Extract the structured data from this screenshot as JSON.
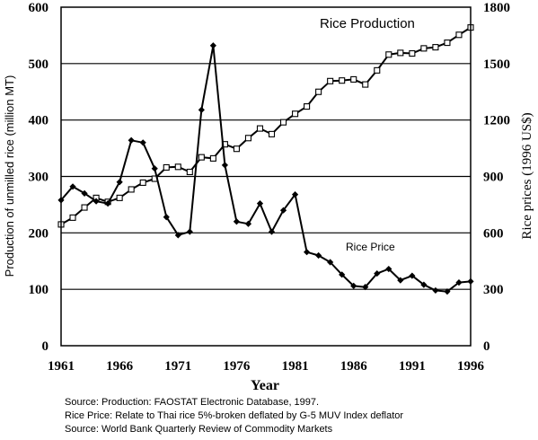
{
  "chart_data": {
    "type": "line",
    "xlabel": "Year",
    "ylabel_left": "Production of unmilled rice (million MT)",
    "ylabel_right": "Rice prices (1996 US$)",
    "xlim": [
      1961,
      1996
    ],
    "ylim_left": [
      0,
      600
    ],
    "ylim_right": [
      0,
      1800
    ],
    "x_ticks": [
      "1961",
      "1966",
      "1971",
      "1976",
      "1981",
      "1986",
      "1991",
      "1996"
    ],
    "y_ticks_left": [
      "0",
      "100",
      "200",
      "300",
      "400",
      "500",
      "600"
    ],
    "y_ticks_right": [
      "0",
      "300",
      "600",
      "900",
      "1200",
      "1500",
      "1800"
    ],
    "grid": "horizontal",
    "series": [
      {
        "name": "Rice Production",
        "axis": "left",
        "marker": "open-square",
        "x": [
          1961,
          1962,
          1963,
          1964,
          1965,
          1966,
          1967,
          1968,
          1969,
          1970,
          1971,
          1972,
          1973,
          1974,
          1975,
          1976,
          1977,
          1978,
          1979,
          1980,
          1981,
          1982,
          1983,
          1984,
          1985,
          1986,
          1987,
          1988,
          1989,
          1990,
          1991,
          1992,
          1993,
          1994,
          1995,
          1996
        ],
        "values": [
          215,
          227,
          245,
          262,
          255,
          262,
          277,
          289,
          296,
          316,
          317,
          308,
          334,
          332,
          357,
          349,
          368,
          385,
          375,
          396,
          411,
          424,
          450,
          469,
          470,
          472,
          463,
          488,
          516,
          519,
          518,
          527,
          529,
          537,
          551,
          564
        ]
      },
      {
        "name": "Rice Price",
        "axis": "right",
        "marker": "filled-diamond",
        "x": [
          1961,
          1962,
          1963,
          1964,
          1965,
          1966,
          1967,
          1968,
          1969,
          1970,
          1971,
          1972,
          1973,
          1974,
          1975,
          1976,
          1977,
          1978,
          1979,
          1980,
          1981,
          1982,
          1983,
          1984,
          1985,
          1986,
          1987,
          1988,
          1989,
          1990,
          1991,
          1992,
          1993,
          1994,
          1995,
          1996
        ],
        "values": [
          774,
          846,
          810,
          768,
          756,
          870,
          1092,
          1080,
          942,
          684,
          588,
          606,
          1254,
          1596,
          960,
          660,
          648,
          756,
          606,
          720,
          804,
          498,
          480,
          444,
          378,
          318,
          312,
          384,
          408,
          348,
          372,
          324,
          294,
          288,
          336,
          342
        ]
      }
    ]
  },
  "annotations": {
    "production": "Rice Production",
    "price": "Rice Price"
  },
  "source_notes": [
    "Source: Production: FAOSTAT Electronic Database, 1997.",
    "Rice Price: Relate to Thai rice 5%-broken deflated by G-5 MUV Index deflator",
    "Source: World Bank Quarterly Review of Commodity Markets"
  ]
}
